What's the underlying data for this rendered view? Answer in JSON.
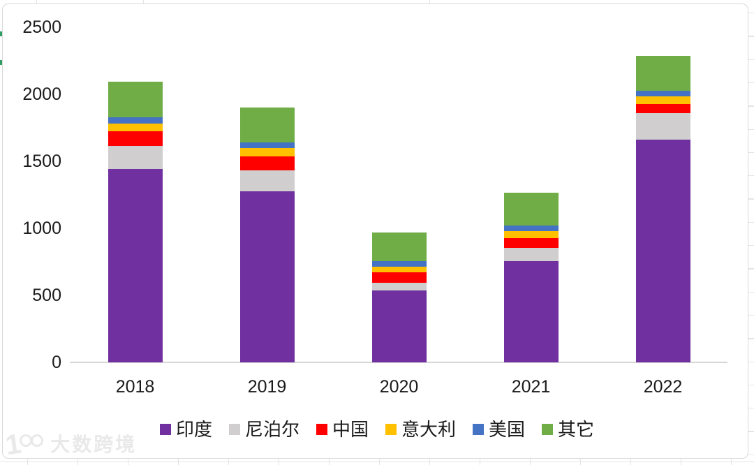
{
  "watermark": {
    "logo": "100",
    "brand": "大数跨境"
  },
  "chart_data": {
    "type": "bar",
    "stacked": true,
    "title": "",
    "xlabel": "",
    "ylabel": "",
    "categories": [
      "2018",
      "2019",
      "2020",
      "2021",
      "2022"
    ],
    "series": [
      {
        "name": "印度",
        "color": "#7030A0",
        "values": [
          1440,
          1275,
          535,
          755,
          1660
        ]
      },
      {
        "name": "尼泊尔",
        "color": "#D0CECE",
        "values": [
          170,
          155,
          55,
          95,
          195
        ]
      },
      {
        "name": "中国",
        "color": "#FF0000",
        "values": [
          110,
          105,
          80,
          75,
          70
        ]
      },
      {
        "name": "意大利",
        "color": "#FFC000",
        "values": [
          60,
          60,
          40,
          50,
          55
        ]
      },
      {
        "name": "美国",
        "color": "#4472C4",
        "values": [
          45,
          45,
          45,
          45,
          45
        ]
      },
      {
        "name": "其它",
        "color": "#70AD47",
        "values": [
          265,
          260,
          210,
          245,
          260
        ]
      }
    ],
    "totals": [
      2090,
      1900,
      965,
      1265,
      2285
    ],
    "ylim": [
      0,
      2500
    ],
    "yticks": [
      0,
      500,
      1000,
      1500,
      2000,
      2500
    ],
    "grid": false,
    "legend_position": "bottom",
    "axis_line_color": "#d6d6d6",
    "text_color": "#1a1a1a"
  }
}
